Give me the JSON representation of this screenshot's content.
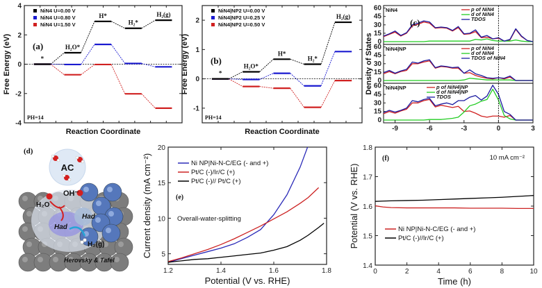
{
  "chart_data": [
    {
      "id": "a",
      "type": "line",
      "panel_label": "(a)",
      "title": "",
      "xlabel": "Reaction Coordinate",
      "ylabel": "Free Energy (eV)",
      "ylim": [
        -4,
        4
      ],
      "yticks": [
        -4,
        -2,
        0,
        2,
        4
      ],
      "annotation": "PH=14",
      "categories": [
        "*",
        "H2O*",
        "H*",
        "H2*",
        "H2(g)"
      ],
      "series": [
        {
          "name": "NiN4 U=0.00 V",
          "color": "#000000",
          "values": [
            0,
            0.78,
            2.92,
            2.45,
            3.0
          ]
        },
        {
          "name": "NiN4 U=0.80 V",
          "color": "#1a1ad0",
          "values": [
            0,
            -0.02,
            1.35,
            0.05,
            -0.18
          ]
        },
        {
          "name": "NiN4 U=1.50 V",
          "color": "#d02020",
          "values": [
            0,
            -0.72,
            -0.02,
            -2.02,
            -3.0
          ]
        }
      ]
    },
    {
      "id": "b",
      "type": "line",
      "panel_label": "(b)",
      "title": "",
      "xlabel": "Reaction Coordinate",
      "ylabel": "Free Energy (eV)",
      "ylim": [
        -1.5,
        2.5
      ],
      "yticks": [
        -1,
        0,
        1,
        2
      ],
      "annotation": "PH=14",
      "categories": [
        "*",
        "H2O*",
        "H*",
        "H2*",
        "H2(g)"
      ],
      "series": [
        {
          "name": "NiN4|NP2 U=0.00 V",
          "color": "#000000",
          "values": [
            0,
            0.24,
            0.67,
            0.5,
            1.93
          ]
        },
        {
          "name": "NiN4|NP2 U=0.25 V",
          "color": "#1a1ad0",
          "values": [
            0,
            -0.02,
            0.19,
            -0.24,
            0.93
          ]
        },
        {
          "name": "NiN4|NP2 U=0.50 V",
          "color": "#d02020",
          "values": [
            0,
            -0.26,
            -0.32,
            -0.97,
            -0.06
          ]
        }
      ]
    },
    {
      "id": "c",
      "type": "line",
      "panel_label": "(c)",
      "ylabel": "Density of States",
      "xlim": [
        -10,
        3
      ],
      "xticks": [
        -9,
        -6,
        -3,
        0,
        3
      ],
      "ylim": [
        0,
        60
      ],
      "yticks": [
        0,
        15,
        30,
        45,
        60
      ],
      "x": [
        -10,
        -9.5,
        -9,
        -8.5,
        -8,
        -7.5,
        -7,
        -6.5,
        -6,
        -5.5,
        -5,
        -4.5,
        -4,
        -3.5,
        -3,
        -2.5,
        -2,
        -1.5,
        -1,
        -0.5,
        0,
        0.5,
        1,
        1.5,
        2,
        2.5,
        3
      ],
      "subplots": [
        {
          "name": "NiN4",
          "series": [
            {
              "name": "p of NiN4",
              "color": "#d02020",
              "values": [
                9,
                13,
                17,
                10,
                15,
                28,
                31,
                35,
                33,
                24,
                25,
                24,
                19,
                25,
                13,
                14,
                18,
                7,
                8,
                5,
                6,
                1,
                3,
                22,
                9,
                2,
                0
              ]
            },
            {
              "name": "d of NiN4",
              "color": "#22cc22",
              "values": [
                0,
                0,
                0,
                0,
                0,
                0,
                0,
                0,
                1,
                1,
                1,
                1,
                1,
                1,
                1,
                1,
                4,
                3,
                5,
                2,
                1,
                1,
                1,
                3,
                1,
                0,
                0
              ]
            },
            {
              "name": "TDOS",
              "color": "#1a1aa0",
              "values": [
                10,
                14,
                19,
                11,
                16,
                30,
                33,
                37,
                35,
                25,
                26,
                25,
                20,
                27,
                14,
                15,
                21,
                8,
                11,
                5,
                7,
                1,
                4,
                23,
                10,
                2,
                0
              ]
            }
          ]
        },
        {
          "name": "NiN4|NP",
          "series": [
            {
              "name": "p of NiN4",
              "color": "#d02020",
              "values": [
                12,
                16,
                12,
                16,
                18,
                30,
                30,
                33,
                35,
                22,
                25,
                24,
                22,
                22,
                13,
                14,
                9,
                6,
                4,
                3,
                5,
                3,
                6,
                0,
                0,
                0,
                0
              ]
            },
            {
              "name": "d of NiN4",
              "color": "#22cc22",
              "values": [
                0,
                0,
                0,
                0,
                0,
                0,
                0,
                0,
                0,
                0,
                0,
                0,
                0,
                0,
                1,
                4,
                3,
                2,
                1,
                1,
                1,
                1,
                1,
                0,
                0,
                0,
                0
              ]
            },
            {
              "name": "TDOS of NiN4",
              "color": "#1a1aa0",
              "values": [
                14,
                18,
                13,
                17,
                20,
                33,
                31,
                35,
                37,
                23,
                26,
                25,
                23,
                24,
                13,
                19,
                12,
                9,
                5,
                4,
                5,
                4,
                8,
                0,
                0,
                0,
                0
              ]
            }
          ]
        },
        {
          "name": "NiN4|NP",
          "series": [
            {
              "name": "p of NiN4|NP",
              "color": "#d02020",
              "values": [
                11,
                15,
                12,
                16,
                19,
                30,
                30,
                34,
                36,
                23,
                26,
                24,
                22,
                24,
                15,
                16,
                12,
                7,
                5,
                7,
                7,
                5,
                8,
                0,
                0,
                0,
                0
              ]
            },
            {
              "name": "d of NiN4|NP",
              "color": "#22cc22",
              "values": [
                0,
                0,
                0,
                0,
                0,
                0,
                0,
                0,
                1,
                1,
                1,
                2,
                3,
                5,
                14,
                25,
                28,
                33,
                36,
                54,
                35,
                8,
                2,
                0,
                0,
                0,
                0
              ]
            },
            {
              "name": "TDOS",
              "color": "#1a1aa0",
              "values": [
                13,
                17,
                14,
                17,
                21,
                34,
                32,
                36,
                38,
                25,
                28,
                30,
                27,
                34,
                34,
                40,
                43,
                35,
                42,
                61,
                45,
                15,
                10,
                0,
                0,
                0,
                0
              ]
            }
          ]
        }
      ]
    },
    {
      "id": "e",
      "type": "line",
      "panel_label": "(e)",
      "annotation": "Overall-water-splitting",
      "xlabel": "Potential (V vs. RHE)",
      "ylabel": "Current density (mA cm⁻²)",
      "xlim": [
        1.2,
        1.8
      ],
      "xticks": [
        1.2,
        1.4,
        1.6,
        1.8
      ],
      "ylim": [
        3.5,
        20
      ],
      "yticks": [
        5,
        10,
        15,
        20
      ],
      "x": [
        1.2,
        1.25,
        1.3,
        1.35,
        1.4,
        1.45,
        1.5,
        1.55,
        1.6,
        1.65,
        1.7,
        1.73,
        1.77,
        1.79
      ],
      "series": [
        {
          "name": "Ni NP|Ni-N-C/EG (- and +)",
          "color": "#2a2ab8",
          "values": [
            3.8,
            4.3,
            4.8,
            5.3,
            5.8,
            6.4,
            7.3,
            8.4,
            10.5,
            13.3,
            17.2,
            20.2,
            null,
            null
          ]
        },
        {
          "name": "Pt/C (-)/Ir/C (+)",
          "color": "#cc2222",
          "values": [
            3.9,
            4.4,
            5.0,
            5.6,
            6.3,
            7.1,
            8.0,
            8.9,
            9.9,
            10.9,
            12.1,
            12.9,
            14.3,
            null
          ]
        },
        {
          "name": "Pt/C (-)// Pt/C (+)",
          "color": "#000000",
          "values": [
            3.8,
            4.0,
            4.2,
            4.3,
            4.5,
            4.7,
            4.9,
            5.1,
            5.5,
            6.0,
            6.9,
            7.6,
            8.7,
            9.3
          ]
        }
      ]
    },
    {
      "id": "f",
      "type": "line",
      "panel_label": "(f)",
      "annotation": "10 mA cm⁻²",
      "xlabel": "Time (h)",
      "ylabel": "Potential (V vs. RHE)",
      "xlim": [
        0,
        10
      ],
      "xticks": [
        0,
        2,
        4,
        6,
        8,
        10
      ],
      "ylim": [
        1.4,
        1.8
      ],
      "yticks": [
        1.4,
        1.5,
        1.6,
        1.7,
        1.8
      ],
      "x": [
        0,
        0.5,
        1,
        2,
        3,
        4,
        5,
        6,
        7,
        8,
        9,
        10
      ],
      "series": [
        {
          "name": "Ni NP|Ni-N-C/EG (- and +)",
          "color": "#cc2222",
          "values": [
            1.601,
            1.597,
            1.595,
            1.594,
            1.594,
            1.594,
            1.594,
            1.593,
            1.593,
            1.593,
            1.592,
            1.592
          ]
        },
        {
          "name": "Pt/C (-)//Ir/C (+)",
          "color": "#000000",
          "values": [
            1.616,
            1.617,
            1.618,
            1.619,
            1.62,
            1.622,
            1.624,
            1.626,
            1.628,
            1.63,
            1.633,
            1.636
          ]
        }
      ]
    }
  ],
  "figure_d": {
    "panel_label": "(d)",
    "labels": {
      "ac": "AC",
      "oh": "OH⁻",
      "h2o": "H₂O",
      "had1": "Had",
      "had2": "Had",
      "h2g": "H₂(g)",
      "mechanism": "Herovsky & Tafel"
    }
  },
  "step_labels": {
    "star": "*",
    "h2o": "H₂O*",
    "h": "H*",
    "h2": "H₂*",
    "h2g": "H₂(g)"
  }
}
